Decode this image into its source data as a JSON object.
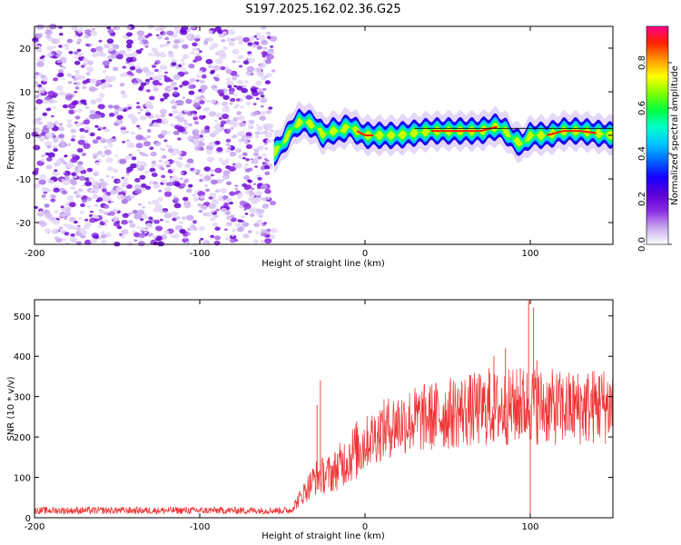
{
  "title": "S197.2025.162.02.36.G25",
  "chart_data": [
    {
      "type": "heatmap",
      "xlabel": "Height of straight line (km)",
      "ylabel": "Frequency (Hz)",
      "xlim": [
        -200,
        150
      ],
      "ylim": [
        -25,
        25
      ],
      "xticks": [
        -200,
        -100,
        0,
        100
      ],
      "yticks": [
        -20,
        -10,
        0,
        10,
        20
      ],
      "noise_region_x": [
        -200,
        -55
      ],
      "signal_trace": {
        "x": [
          -55,
          -50,
          -45,
          -40,
          -35,
          -30,
          -25,
          -20,
          -15,
          -10,
          -5,
          0,
          10,
          20,
          30,
          40,
          50,
          60,
          70,
          80,
          85,
          90,
          95,
          100,
          110,
          120,
          130,
          140,
          150
        ],
        "y": [
          -4,
          -2,
          1,
          3,
          3,
          2,
          0,
          1,
          1,
          2,
          1,
          0,
          0,
          0,
          0.5,
          1,
          1,
          1,
          1,
          2,
          1,
          -1,
          -2,
          0,
          0,
          1,
          1,
          0.5,
          0
        ],
        "peak_amplitude_x_ranges": [
          [
            -5,
            5
          ],
          [
            40,
            80
          ],
          [
            110,
            140
          ]
        ]
      },
      "colorbar": {
        "label": "Normalized spectral amplitude",
        "ticks": [
          "0.0",
          "0.2",
          "0.4",
          "0.6",
          "0.8"
        ],
        "range": [
          0,
          0.96
        ],
        "colors": [
          "#ffffff",
          "#c7a8ee",
          "#8b2be2",
          "#5a00d6",
          "#1400ff",
          "#0066ff",
          "#00c8ff",
          "#00ffc8",
          "#00ff40",
          "#80ff00",
          "#ffff00",
          "#ff9900",
          "#ff2200",
          "#ff0088"
        ]
      }
    },
    {
      "type": "line",
      "xlabel": "Height of straight line (km)",
      "ylabel": "SNR (10 * v/v)",
      "xlim": [
        -200,
        150
      ],
      "ylim": [
        0,
        540
      ],
      "xticks": [
        -200,
        -100,
        0,
        100
      ],
      "yticks": [
        0,
        100,
        200,
        300,
        400,
        500
      ],
      "color": "#ee3333",
      "baseline_x": [
        -200,
        -45,
        -30,
        -20,
        -10,
        0,
        10,
        20,
        40,
        60,
        80,
        100,
        120,
        150
      ],
      "baseline_y": [
        18,
        18,
        100,
        110,
        150,
        185,
        215,
        235,
        250,
        265,
        270,
        280,
        270,
        280
      ],
      "spikes": [
        {
          "x": -27,
          "y": 340
        },
        {
          "x": -29,
          "y": 280
        },
        {
          "x": 75,
          "y": 370
        },
        {
          "x": 78,
          "y": 400
        },
        {
          "x": 85,
          "y": 420
        },
        {
          "x": 94,
          "y": 370
        },
        {
          "x": 99,
          "y": 540
        },
        {
          "x": 100,
          "y": 10
        },
        {
          "x": 102,
          "y": 520
        },
        {
          "x": 104,
          "y": 390
        },
        {
          "x": 142,
          "y": 350
        }
      ]
    }
  ]
}
